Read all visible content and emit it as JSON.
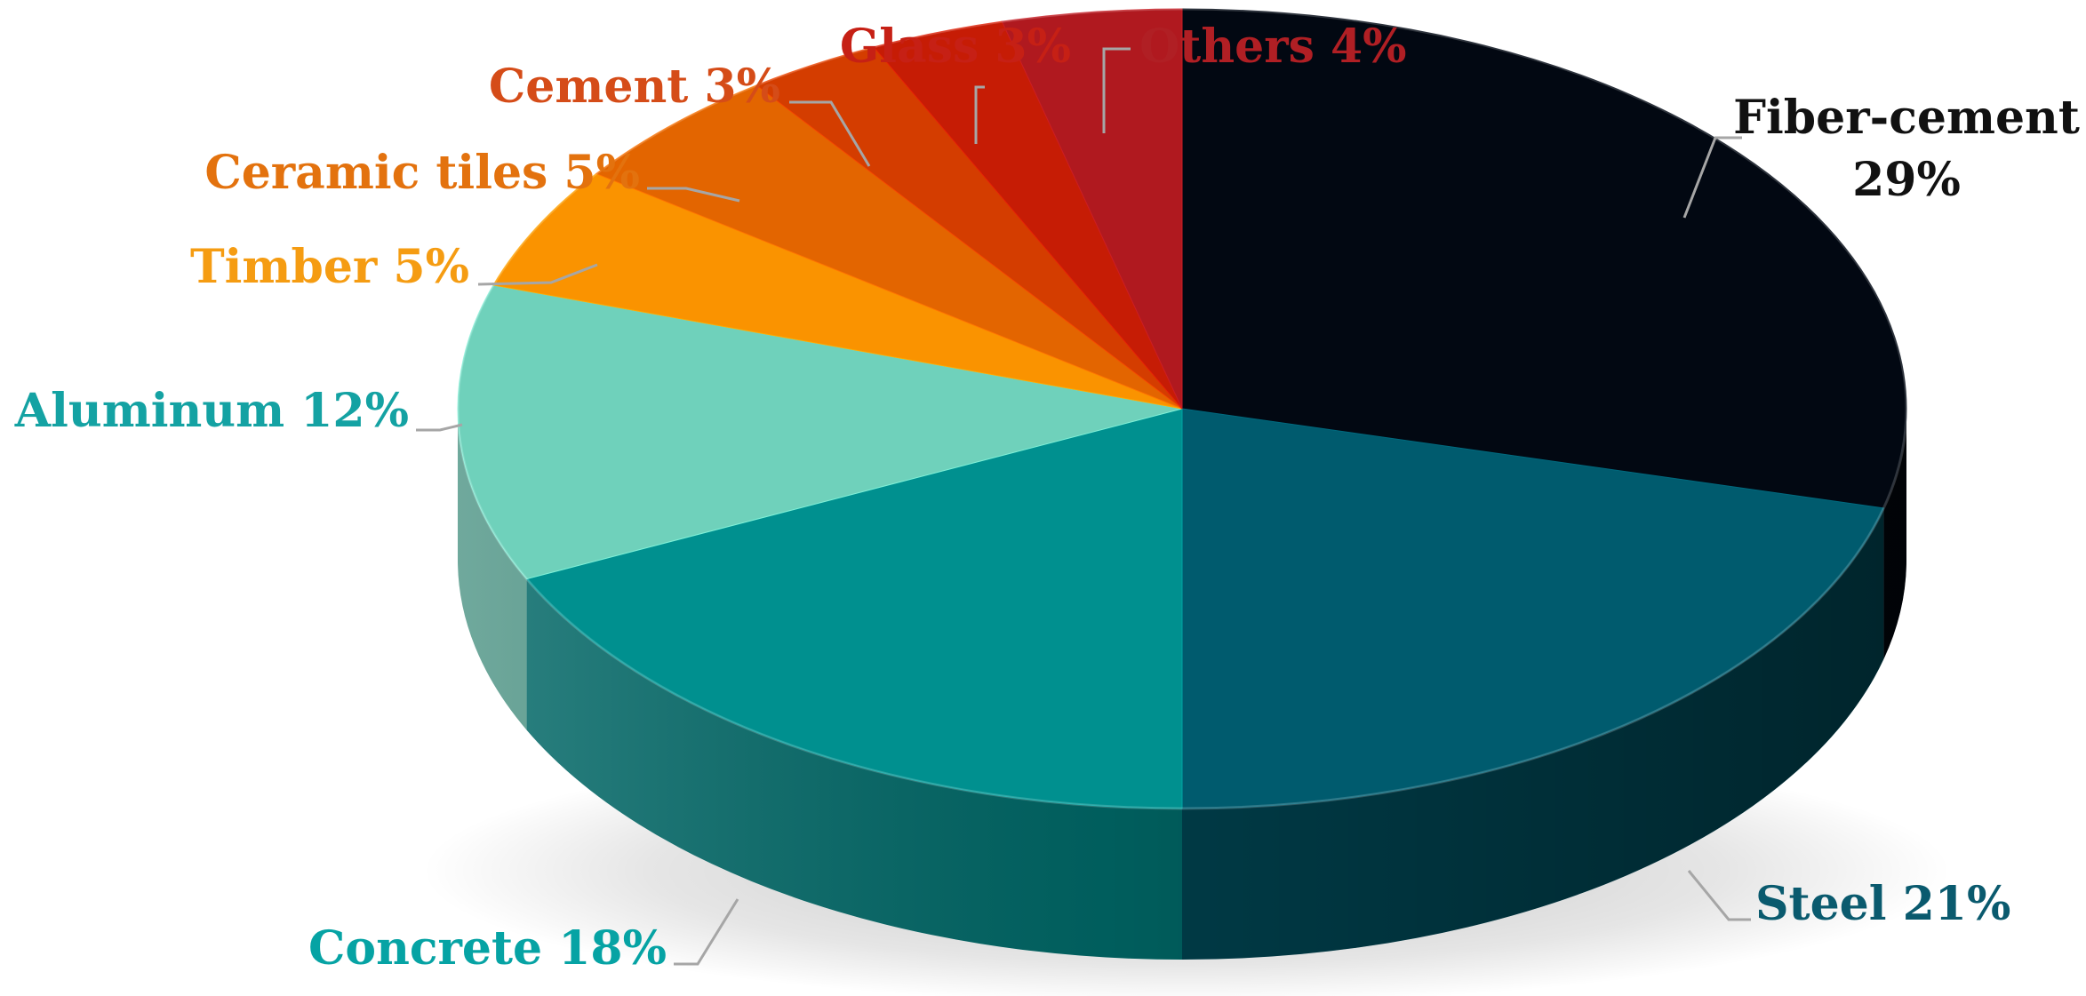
{
  "chart_data": {
    "type": "pie",
    "variant": "3d",
    "title": "",
    "slices": [
      {
        "label": "Fiber-cement",
        "value": 29,
        "color": "#020812",
        "label_color": "#111111",
        "display": "29%"
      },
      {
        "label": "Steel",
        "value": 21,
        "color": "#005b6e",
        "label_color": "#0a5a6e",
        "display": "21%"
      },
      {
        "label": "Concrete",
        "value": 18,
        "color": "#00908f",
        "label_color": "#06a3a4",
        "display": "18%"
      },
      {
        "label": "Aluminum",
        "value": 12,
        "color": "#6fd1bb",
        "label_color": "#14a2a3",
        "display": "12%"
      },
      {
        "label": "Timber",
        "value": 5,
        "color": "#fa9300",
        "label_color": "#f59c12",
        "display": "5%"
      },
      {
        "label": "Ceramic tiles",
        "value": 5,
        "color": "#e36500",
        "label_color": "#e3720e",
        "display": "5%"
      },
      {
        "label": "Cement",
        "value": 3,
        "color": "#d43d00",
        "label_color": "#d54c18",
        "display": "3%"
      },
      {
        "label": "Glass",
        "value": 3,
        "color": "#c61c05",
        "label_color": "#c62015",
        "display": "3%"
      },
      {
        "label": "Others",
        "value": 4,
        "color": "#b0191f",
        "label_color": "#b01f24",
        "display": "4%"
      }
    ]
  }
}
